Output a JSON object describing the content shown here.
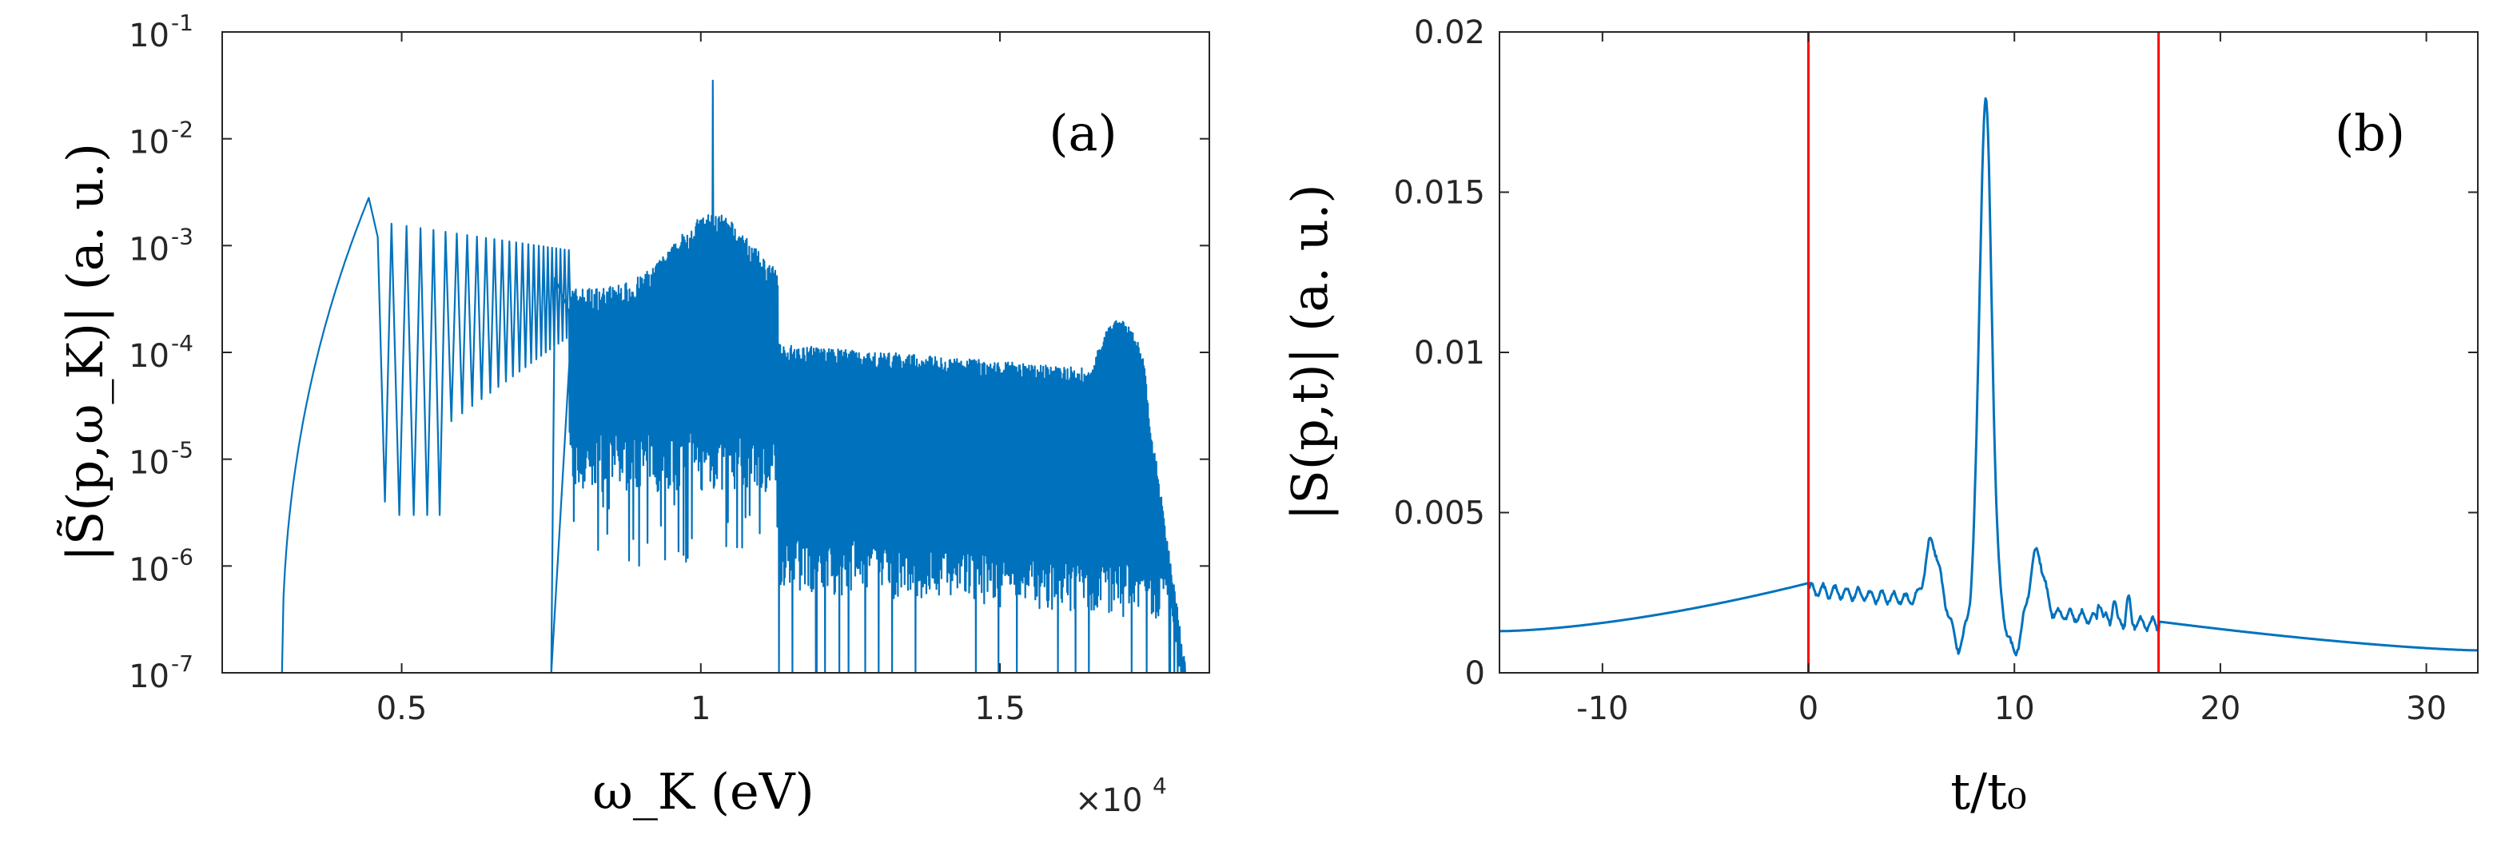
{
  "colors": {
    "series": "#0072bd",
    "marker_lines": "#ff0000",
    "axes": "#262626"
  },
  "chart_data": [
    {
      "panel": "(a)",
      "type": "line",
      "y_scale": "log",
      "xlim": [
        2000,
        18500
      ],
      "ylim": [
        1e-07,
        0.1
      ],
      "x_ticks": [
        5000,
        10000,
        15000
      ],
      "x_tick_labels": [
        "0.5",
        "1",
        "1.5"
      ],
      "x_exponent_base": "×10",
      "x_exponent_power": "4",
      "y_ticks": [
        -7,
        -6,
        -5,
        -4,
        -3,
        -2,
        -1
      ],
      "y_tick_labels": [
        {
          "base": "10",
          "exp": "-7"
        },
        {
          "base": "10",
          "exp": "-6"
        },
        {
          "base": "10",
          "exp": "-5"
        },
        {
          "base": "10",
          "exp": "-4"
        },
        {
          "base": "10",
          "exp": "-3"
        },
        {
          "base": "10",
          "exp": "-2"
        },
        {
          "base": "10",
          "exp": "-1"
        }
      ],
      "xlabel": "ω_K (eV)",
      "ylabel": "|S̃(p,ω_K)| (a. u.)",
      "envelope": {
        "main_peak": {
          "x": 4450,
          "y": 0.0028
        },
        "low_edge_start": {
          "x": 3000,
          "y": 1e-07
        },
        "fringe_region": {
          "from": 4700,
          "to": 7800,
          "top_start": 0.0016,
          "top_end": 0.0009
        },
        "noisy_band_1": {
          "from": 7800,
          "to": 11300,
          "top": 0.002,
          "bottom": 3e-06
        },
        "sharp_peak": {
          "x": 10200,
          "y": 0.035
        },
        "noisy_band_2": {
          "from": 11300,
          "to": 16600,
          "top": 0.00012,
          "bottom": 3e-07
        },
        "shoulder_peak": {
          "x": 17000,
          "y": 0.0002
        },
        "high_edge_end": {
          "x": 18100,
          "y": 1e-07
        }
      }
    },
    {
      "panel": "(b)",
      "type": "line",
      "xlim": [
        -15,
        32.5
      ],
      "ylim": [
        0,
        0.02
      ],
      "x_ticks": [
        -10,
        0,
        10,
        20,
        30
      ],
      "x_tick_labels": [
        "-10",
        "0",
        "10",
        "20",
        "30"
      ],
      "y_ticks": [
        0,
        0.005,
        0.01,
        0.015,
        0.02
      ],
      "y_tick_labels": [
        "0",
        "0.005",
        "0.01",
        "0.015",
        "0.02"
      ],
      "xlabel": "t/t₀",
      "ylabel": "|S(p,t)| (a. u.)",
      "vertical_lines_x": [
        0,
        17
      ],
      "key_points": [
        {
          "x": -15,
          "y": 0.0013
        },
        {
          "x": 0,
          "y": 0.0028
        },
        {
          "x": 6,
          "y": 0.0038
        },
        {
          "x": 7.3,
          "y": 0.0008
        },
        {
          "x": 8.6,
          "y": 0.0173
        },
        {
          "x": 10,
          "y": 0.0006
        },
        {
          "x": 11.1,
          "y": 0.0039
        },
        {
          "x": 17,
          "y": 0.0016
        },
        {
          "x": 32.5,
          "y": 0.0007
        }
      ]
    }
  ]
}
